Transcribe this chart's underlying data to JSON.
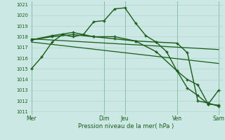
{
  "background_color": "#cce8e4",
  "grid_color": "#aacfc8",
  "line_color": "#1a5c1a",
  "marker_color": "#1a5c1a",
  "ylabel_min": 1011,
  "ylabel_max": 1021,
  "xlabel": "Pression niveau de la mer( hPa )",
  "day_labels": [
    "Mer",
    "Dim",
    "Jeu",
    "Ven",
    "Sam"
  ],
  "day_positions": [
    0,
    3.5,
    4.5,
    7,
    9
  ],
  "lines": [
    {
      "x": [
        0,
        0.5,
        1.0,
        1.5,
        2.0,
        2.5,
        3.0,
        3.5,
        4.0,
        4.5,
        5.0,
        5.5,
        6.0,
        6.5,
        7.0,
        7.5,
        8.0,
        8.5,
        9.0
      ],
      "y": [
        1015.0,
        1016.1,
        1017.5,
        1018.2,
        1018.0,
        1018.2,
        1019.4,
        1019.5,
        1020.6,
        1020.7,
        1019.3,
        1018.1,
        1017.5,
        1016.6,
        1014.8,
        1013.2,
        1012.5,
        1011.7,
        1013.0
      ],
      "marker": true,
      "linewidth": 1.0
    },
    {
      "x": [
        0,
        1,
        2,
        3,
        4,
        5,
        6,
        7,
        7.5,
        8,
        8.5,
        9
      ],
      "y": [
        1017.7,
        1018.0,
        1018.2,
        1018.0,
        1017.8,
        1017.6,
        1016.6,
        1014.8,
        1014.0,
        1013.5,
        1011.7,
        1011.6
      ],
      "marker": true,
      "linewidth": 1.0
    },
    {
      "x": [
        0,
        9
      ],
      "y": [
        1017.8,
        1016.8
      ],
      "marker": false,
      "linewidth": 0.9
    },
    {
      "x": [
        0,
        9
      ],
      "y": [
        1017.5,
        1015.5
      ],
      "marker": false,
      "linewidth": 0.9
    },
    {
      "x": [
        0,
        1,
        2,
        3,
        4,
        5,
        6,
        7,
        7.5,
        8,
        8.5,
        9
      ],
      "y": [
        1017.7,
        1018.1,
        1018.4,
        1018.0,
        1018.0,
        1017.6,
        1017.5,
        1017.4,
        1016.5,
        1012.0,
        1011.8,
        1011.5
      ],
      "marker": true,
      "linewidth": 1.0
    }
  ]
}
